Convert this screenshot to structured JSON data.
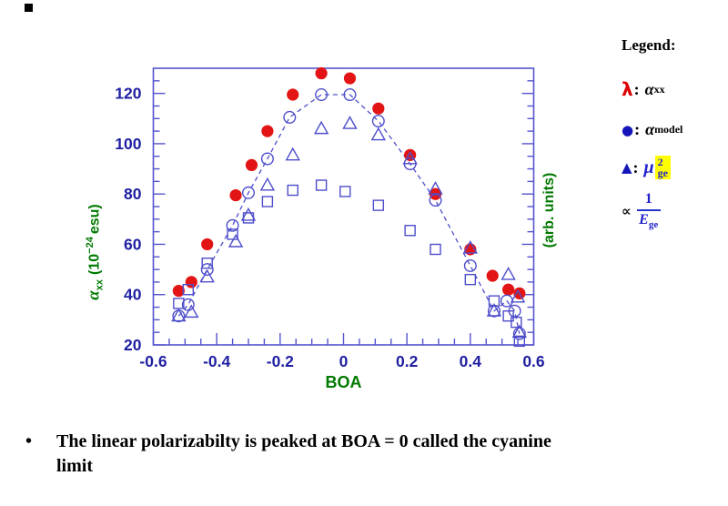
{
  "chart_data": {
    "type": "scatter",
    "title": "",
    "xlabel": "BOA",
    "ylabel_left": "alpha_xx (10^-24 esu)",
    "ylabel_right": "(arb. units)",
    "xlim": [
      -0.6,
      0.6
    ],
    "ylim": [
      20,
      130
    ],
    "grid": false,
    "legend_position": "right-outside",
    "x_major_ticks": [
      -0.6,
      -0.4,
      -0.2,
      0,
      0.2,
      0.4,
      0.6
    ],
    "x_tick_labels": [
      "-0.6",
      "-0.4",
      "-0.2",
      "0",
      "0.2",
      "0.4",
      "0.6"
    ],
    "x_minor_step": 0.05,
    "y_major_ticks": [
      20,
      40,
      60,
      80,
      100,
      120
    ],
    "y_tick_labels": [
      "20",
      "40",
      "60",
      "80",
      "100",
      "120"
    ],
    "y_minor_step": 5,
    "colors": {
      "axis": "#5454ce",
      "tick_labels": "#1f1fa2",
      "axis_labels": "#007a00"
    },
    "series": [
      {
        "name": "alpha_xx",
        "legend": "alpha_xx",
        "marker": "filled-circle",
        "color": "#e31414",
        "points": [
          [
            -0.52,
            41.5
          ],
          [
            -0.48,
            45
          ],
          [
            -0.43,
            60
          ],
          [
            -0.34,
            79.5
          ],
          [
            -0.29,
            91.5
          ],
          [
            -0.24,
            105
          ],
          [
            -0.16,
            119.5
          ],
          [
            -0.07,
            128
          ],
          [
            0.02,
            126
          ],
          [
            0.11,
            114
          ],
          [
            0.21,
            95.5
          ],
          [
            0.29,
            80
          ],
          [
            0.4,
            58
          ],
          [
            0.47,
            47.5
          ],
          [
            0.52,
            42
          ],
          [
            0.555,
            40.5
          ]
        ]
      },
      {
        "name": "alpha_model",
        "legend": "alpha_model",
        "marker": "open-circle",
        "color": "#4d4dcc",
        "line": "dashed",
        "points": [
          [
            -0.52,
            31.5
          ],
          [
            -0.49,
            36
          ],
          [
            -0.43,
            50
          ],
          [
            -0.35,
            67.5
          ],
          [
            -0.3,
            80.5
          ],
          [
            -0.24,
            94
          ],
          [
            -0.17,
            110.5
          ],
          [
            -0.07,
            119.5
          ],
          [
            0.02,
            119.5
          ],
          [
            0.11,
            109
          ],
          [
            0.21,
            92
          ],
          [
            0.29,
            77.5
          ],
          [
            0.4,
            51.5
          ],
          [
            0.475,
            33.5
          ],
          [
            0.515,
            37.5
          ],
          [
            0.54,
            33.5
          ],
          [
            0.555,
            24.5
          ]
        ]
      },
      {
        "name": "mu_ge_squared",
        "legend": "mu_ge^2",
        "marker": "open-triangle",
        "color": "#4d4dcc",
        "points": [
          [
            -0.52,
            31.5
          ],
          [
            -0.48,
            33
          ],
          [
            -0.43,
            47
          ],
          [
            -0.34,
            61
          ],
          [
            -0.3,
            71.5
          ],
          [
            -0.24,
            83.5
          ],
          [
            -0.16,
            95.5
          ],
          [
            -0.07,
            106
          ],
          [
            0.02,
            108
          ],
          [
            0.11,
            103.5
          ],
          [
            0.21,
            94
          ],
          [
            0.29,
            82
          ],
          [
            0.4,
            58.5
          ],
          [
            0.475,
            33.5
          ],
          [
            0.52,
            48
          ],
          [
            0.55,
            39
          ],
          [
            0.555,
            25
          ]
        ]
      },
      {
        "name": "inverse_E_ge",
        "legend": "1/E_ge",
        "marker": "open-square",
        "color": "#4d4dcc",
        "points": [
          [
            -0.52,
            36.5
          ],
          [
            -0.49,
            42
          ],
          [
            -0.43,
            52.5
          ],
          [
            -0.35,
            64
          ],
          [
            -0.3,
            70.5
          ],
          [
            -0.24,
            77
          ],
          [
            -0.16,
            81.5
          ],
          [
            -0.07,
            83.5
          ],
          [
            0.005,
            81
          ],
          [
            0.11,
            75.5
          ],
          [
            0.21,
            65.5
          ],
          [
            0.29,
            58
          ],
          [
            0.4,
            46
          ],
          [
            0.475,
            37.5
          ],
          [
            0.52,
            31.5
          ],
          [
            0.545,
            29
          ],
          [
            0.555,
            21.5
          ]
        ]
      }
    ]
  },
  "labels": {
    "xlabel": "BOA",
    "ylabel_alpha": "α",
    "ylabel_sub": "xx",
    "ylabel_unit_pre": "(10",
    "ylabel_exp": "−24",
    "ylabel_unit_post": "esu)",
    "right_label": "(arb. units)"
  },
  "legend": {
    "title": "Legend:",
    "items": [
      {
        "symbol": "λ",
        "sep": ":",
        "main": "α",
        "sub": "xx"
      },
      {
        "symbol": "●",
        "sep": ":",
        "main": "α",
        "sub": "model"
      },
      {
        "symbol": "▲",
        "sep": ":",
        "mu": "μ",
        "sup": "2",
        "sub": "ge"
      },
      {
        "symbol": "∝",
        "numerator": "1",
        "denominator_main": "E",
        "denominator_sub": "ge"
      }
    ],
    "highlight_color": "#ffff00"
  },
  "bullet": {
    "marker": "•",
    "line1": "The linear polarizabilty is peaked at BOA = 0 called the cyanine",
    "line2": "limit"
  }
}
